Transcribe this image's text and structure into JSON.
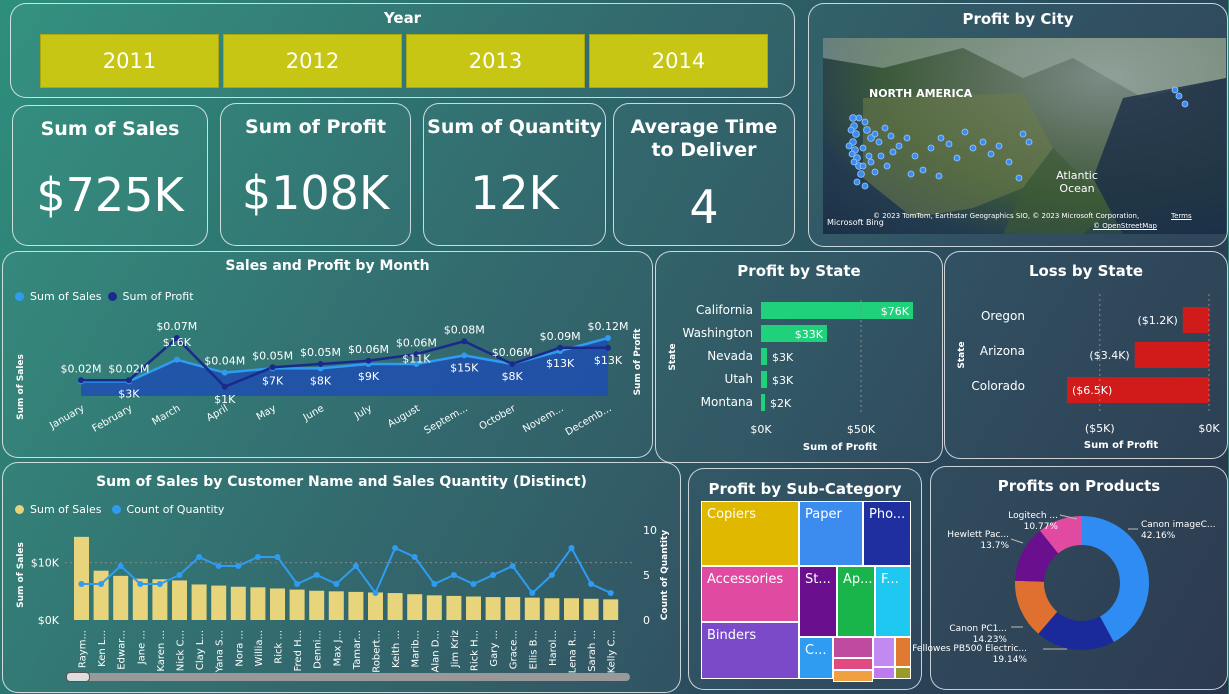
{
  "year_slicer": {
    "title": "Year",
    "years": [
      "2011",
      "2012",
      "2013",
      "2014"
    ],
    "color": "#c7c615"
  },
  "kpis": [
    {
      "title": "Sum of Sales",
      "value": "$725K"
    },
    {
      "title": "Sum of Profit",
      "value": "$108K"
    },
    {
      "title": "Sum of Quantity",
      "value": "12K"
    },
    {
      "title": "Average Time to Deliver",
      "value": "4"
    }
  ],
  "map": {
    "title": "Profit by City",
    "label_continent": "NORTH AMERICA",
    "label_ocean": "Atlantic Ocean",
    "attribution": "© 2023 TomTom, Earthstar Geographics SIO, © 2023 Microsoft Corporation,",
    "terms": "Terms",
    "osm": "© OpenStreetMap",
    "brand": "Microsoft Bing",
    "dot_color": "#3c8cf0"
  },
  "sales_profit_month": {
    "title": "Sales and Profit by Month",
    "legend": [
      "Sum of Sales",
      "Sum of Profit"
    ],
    "ylabel_left": "Sum of Sales",
    "ylabel_right": "Sum of Profit",
    "colors": {
      "sales": "#2f9cf2",
      "profit": "#1a2a8a"
    },
    "chart_data": {
      "type": "line",
      "categories": [
        "January",
        "February",
        "March",
        "April",
        "May",
        "June",
        "July",
        "August",
        "Septem...",
        "October",
        "Novem...",
        "Decemb..."
      ],
      "series": [
        {
          "name": "Sum of Sales",
          "values": [
            0.02,
            0.02,
            0.07,
            0.04,
            0.05,
            0.05,
            0.06,
            0.06,
            0.08,
            0.06,
            0.09,
            0.12
          ],
          "labels": [
            "$0.02M",
            "$0.02M",
            "$0.07M",
            "$0.04M",
            "$0.05M",
            "$0.05M",
            "$0.06M",
            "$0.06M",
            "$0.08M",
            "$0.06M",
            "$0.09M",
            "$0.12M"
          ]
        },
        {
          "name": "Sum of Profit",
          "values": [
            3,
            3,
            16,
            1,
            7,
            8,
            9,
            11,
            15,
            8,
            13,
            13
          ],
          "labels": [
            "",
            "$3K",
            "$16K",
            "$1K",
            "$7K",
            "$8K",
            "$9K",
            "$11K",
            "$15K",
            "$8K",
            "$13K",
            "$13K"
          ]
        }
      ]
    }
  },
  "profit_by_state": {
    "title": "Profit by State",
    "ylabel": "State",
    "xlabel": "Sum of Profit",
    "ticks": [
      "$0K",
      "$50K"
    ],
    "color": "#1fd17a",
    "chart_data": {
      "type": "bar",
      "categories": [
        "California",
        "Washington",
        "Nevada",
        "Utah",
        "Montana"
      ],
      "values": [
        76,
        33,
        3,
        3,
        2
      ],
      "labels": [
        "$76K",
        "$33K",
        "$3K",
        "$3K",
        "$2K"
      ]
    }
  },
  "loss_by_state": {
    "title": "Loss by State",
    "ylabel": "State",
    "xlabel": "Sum of Profit",
    "ticks": [
      "($5K)",
      "$0K"
    ],
    "color": "#d11a1a",
    "chart_data": {
      "type": "bar",
      "categories": [
        "Oregon",
        "Arizona",
        "Colorado"
      ],
      "values": [
        -1.2,
        -3.4,
        -6.5
      ],
      "labels": [
        "($1.2K)",
        "($3.4K)",
        "($6.5K)"
      ]
    }
  },
  "sales_by_customer": {
    "title": "Sum of Sales by Customer Name and Sales Quantity (Distinct)",
    "legend": [
      "Sum of Sales",
      "Count of Quantity"
    ],
    "ylabel_left": "Sum of Sales",
    "ylabel_right": "Count of Quantity",
    "left_ticks": [
      "$0K",
      "$10K"
    ],
    "right_ticks": [
      "0",
      "5",
      "10"
    ],
    "colors": {
      "bar": "#e8d47a",
      "line": "#2f9cf2"
    },
    "chart_data": {
      "type": "bar",
      "categories": [
        "Raym...",
        "Ken L...",
        "Edwar...",
        "Jane ...",
        "Karen ...",
        "Nick C...",
        "Clay L...",
        "Yana S...",
        "Nora ...",
        "Willia...",
        "Rick ...",
        "Fred H...",
        "Denni...",
        "Max J...",
        "Tamar...",
        "Robert...",
        "Keith ...",
        "Marib...",
        "Alan D...",
        "Jim Kriz",
        "Rick H...",
        "Gary ...",
        "Grace...",
        "Ellis B...",
        "Harol...",
        "Lena R...",
        "Sarah ...",
        "Kelly C..."
      ],
      "series": [
        {
          "name": "Sum of Sales",
          "values": [
            14.5,
            8.6,
            7.7,
            7.2,
            7.1,
            6.9,
            6.2,
            6.0,
            5.8,
            5.7,
            5.5,
            5.3,
            5.1,
            5.0,
            4.9,
            4.8,
            4.7,
            4.5,
            4.3,
            4.2,
            4.1,
            4.0,
            4.0,
            3.9,
            3.8,
            3.8,
            3.7,
            3.6
          ]
        },
        {
          "name": "Count of Quantity",
          "values": [
            4,
            4,
            6,
            4,
            4,
            5,
            7,
            6,
            6,
            7,
            7,
            4,
            5,
            4,
            6,
            3,
            8,
            7,
            4,
            5,
            4,
            5,
            6,
            3,
            5,
            8,
            4,
            3
          ]
        }
      ],
      "ylim_left": [
        0,
        15
      ],
      "ylim_right": [
        0,
        10
      ]
    }
  },
  "treemap": {
    "title": "Profit by Sub-Category",
    "cells": [
      {
        "label": "Copiers",
        "color": "#e0b800"
      },
      {
        "label": "Paper",
        "color": "#3c8cf0"
      },
      {
        "label": "Pho...",
        "color": "#1f2fa0"
      },
      {
        "label": "Accessories",
        "color": "#e04aa0"
      },
      {
        "label": "St...",
        "color": "#6a0f8e"
      },
      {
        "label": "Ap...",
        "color": "#1ab54a"
      },
      {
        "label": "F...",
        "color": "#1fc8f0"
      },
      {
        "label": "Binders",
        "color": "#7a4ac8"
      },
      {
        "label": "C...",
        "color": "#2f9cf2"
      },
      {
        "label": "",
        "color": "#c04aa0"
      },
      {
        "label": "",
        "color": "#c08af0"
      },
      {
        "label": "",
        "color": "#e07a30"
      },
      {
        "label": "",
        "color": "#e04a80"
      },
      {
        "label": "",
        "color": "#c07af0"
      },
      {
        "label": "",
        "color": "#f0a040"
      },
      {
        "label": "",
        "color": "#9a9a2a"
      }
    ]
  },
  "donut": {
    "title": "Profits on Products",
    "chart_data": {
      "type": "pie",
      "slices": [
        {
          "name": "Canon imageC...",
          "value": 42.16,
          "label": "42.16%",
          "color": "#2f8cf2"
        },
        {
          "name": "Fellowes PB500 Electric...",
          "value": 19.14,
          "label": "19.14%",
          "color": "#1a2a9a"
        },
        {
          "name": "Canon PC1...",
          "value": 14.23,
          "label": "14.23%",
          "color": "#e07030"
        },
        {
          "name": "Hewlett Pac...",
          "value": 13.7,
          "label": "13.7%",
          "color": "#6a0f8e"
        },
        {
          "name": "Logitech ...",
          "value": 10.77,
          "label": "10.77%",
          "color": "#e04aa0"
        }
      ]
    }
  }
}
